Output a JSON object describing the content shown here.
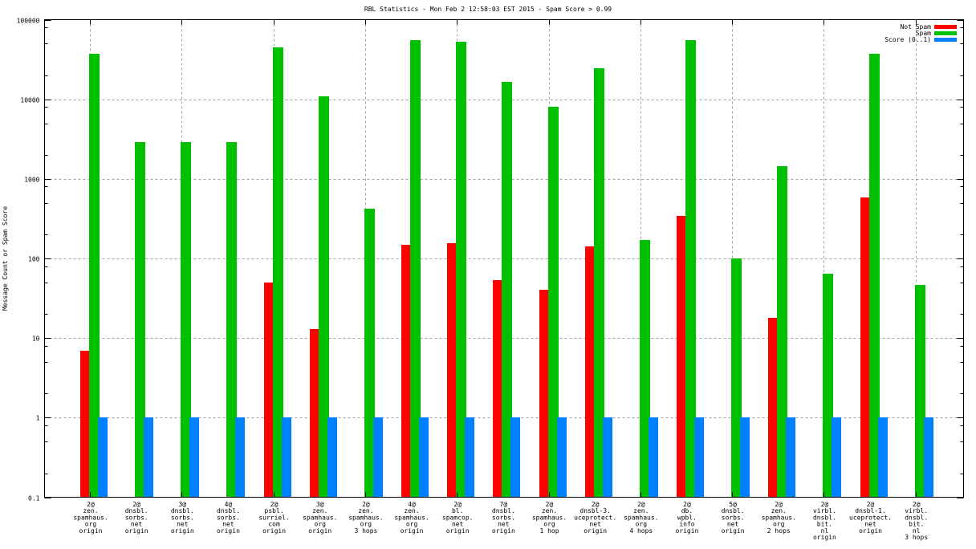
{
  "chart_data": {
    "type": "bar",
    "title": "RBL Statistics - Mon Feb  2 12:58:03 EST 2015 - Spam Score > 0.99",
    "xlabel": "",
    "ylabel": "Message Count or Spam Score",
    "yscale": "log",
    "ylim": [
      0.1,
      100000
    ],
    "yticks": [
      "0.1",
      "1",
      "10",
      "100",
      "1000",
      "10000",
      "100000"
    ],
    "grid": true,
    "legend_position": "top-right",
    "categories": [
      [
        "2@",
        "zen.",
        "spamhaus.",
        "org",
        "origin"
      ],
      [
        "2@",
        "dnsbl.",
        "sorbs.",
        "net",
        "origin"
      ],
      [
        "3@",
        "dnsbl.",
        "sorbs.",
        "net",
        "origin"
      ],
      [
        "4@",
        "dnsbl.",
        "sorbs.",
        "net",
        "origin"
      ],
      [
        "2@",
        "psbl.",
        "surriel.",
        "com",
        "origin"
      ],
      [
        "3@",
        "zen.",
        "spamhaus.",
        "org",
        "origin"
      ],
      [
        "2@",
        "zen.",
        "spamhaus.",
        "org",
        "3 hops"
      ],
      [
        "4@",
        "zen.",
        "spamhaus.",
        "org",
        "origin"
      ],
      [
        "2@",
        "bl.",
        "spamcop.",
        "net",
        "origin"
      ],
      [
        "7@",
        "dnsbl.",
        "sorbs.",
        "net",
        "origin"
      ],
      [
        "2@",
        "zen.",
        "spamhaus.",
        "org",
        "1 hop"
      ],
      [
        "2@",
        "dnsbl-3.",
        "uceprotect.",
        "net",
        "origin"
      ],
      [
        "2@",
        "zen.",
        "spamhaus.",
        "org",
        "4 hops"
      ],
      [
        "2@",
        "db.",
        "wpbl.",
        "info",
        "origin"
      ],
      [
        "5@",
        "dnsbl.",
        "sorbs.",
        "net",
        "origin"
      ],
      [
        "2@",
        "zen.",
        "spamhaus.",
        "org",
        "2 hops"
      ],
      [
        "2@",
        "virbl.",
        "dnsbl.",
        "bit.",
        "nl",
        "origin"
      ],
      [
        "2@",
        "dnsbl-1.",
        "uceprotect.",
        "net",
        "origin"
      ],
      [
        "2@",
        "virbl.",
        "dnsbl.",
        "bit.",
        "nl",
        "3 hops"
      ]
    ],
    "series": [
      {
        "name": "Not Spam",
        "color": "#ff0000",
        "values": [
          7,
          0,
          0,
          0,
          50,
          13,
          0,
          150,
          154,
          54,
          40,
          143,
          0,
          340,
          0,
          18,
          0,
          580,
          0
        ]
      },
      {
        "name": "Spam",
        "color": "#00c000",
        "values": [
          37000,
          2900,
          2900,
          2900,
          45000,
          11000,
          420,
          55000,
          53000,
          16700,
          8100,
          24600,
          172,
          55000,
          100,
          1450,
          65,
          37700,
          46
        ]
      },
      {
        "name": "Score (0..1)",
        "color": "#0080ff",
        "values": [
          1,
          1,
          1,
          1,
          1,
          1,
          1,
          1,
          1,
          1,
          1,
          1,
          1,
          1,
          1,
          1,
          1,
          1,
          1
        ]
      }
    ]
  }
}
